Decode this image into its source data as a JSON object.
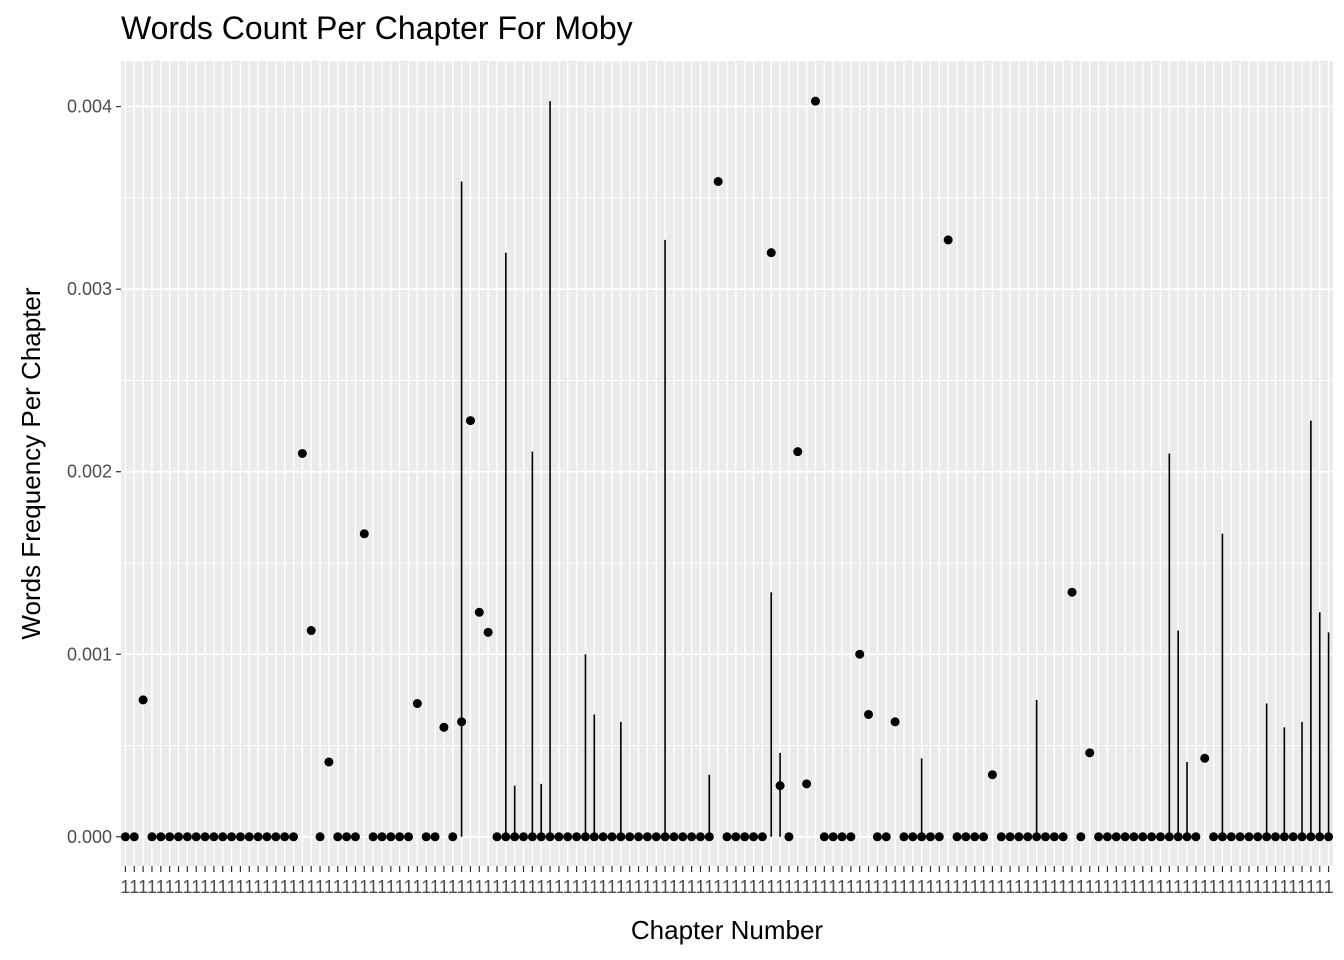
{
  "chart_data": {
    "type": "scatter",
    "title": "Words Count Per Chapter For Moby",
    "xlabel": "Chapter Number",
    "ylabel": "Words Frequency Per Chapter",
    "ylim": [
      -0.00016,
      0.00425
    ],
    "yticks": [
      0,
      0.001,
      0.002,
      0.003,
      0.004
    ],
    "ytick_labels": [
      "0.000",
      "0.001",
      "0.002",
      "0.003",
      "0.004"
    ],
    "grid": true,
    "panel_background": "#ebebeb",
    "grid_color": "#ffffff",
    "point_color": "#000000",
    "line_color": "#000000",
    "n_categories": 137,
    "x_tick_labels_note": "137 overlapping chapter-number tick labels, illegible",
    "points": [
      0,
      0,
      0.00075,
      0,
      0,
      0,
      0,
      0,
      0,
      0,
      0,
      0,
      0,
      0,
      0,
      0,
      0,
      0,
      0,
      0,
      0.0021,
      0.00113,
      0,
      0.00041,
      0,
      0,
      0,
      0.00166,
      0,
      0,
      0,
      0,
      0,
      0.00073,
      0,
      0,
      0.0006,
      0,
      0.00063,
      0.00228,
      0.00123,
      0.00112,
      0,
      0,
      0,
      0,
      0,
      0,
      0,
      0,
      0,
      0,
      0,
      0,
      0,
      0,
      0,
      0,
      0,
      0,
      0,
      0,
      0,
      0,
      0,
      0,
      0,
      0,
      0,
      0,
      0,
      0,
      0,
      0,
      0,
      0,
      0,
      0,
      0,
      0,
      0,
      0,
      0,
      0,
      0,
      0,
      0,
      0,
      0,
      0,
      0,
      0,
      0,
      0,
      0,
      0,
      0,
      0,
      0,
      0,
      0,
      0,
      0,
      0,
      0,
      0,
      0,
      0,
      0,
      0,
      0,
      0,
      0,
      0,
      0,
      0,
      0,
      0,
      0,
      0,
      0,
      0,
      0,
      0,
      0,
      0,
      0,
      0,
      0,
      0,
      0,
      0,
      0,
      0,
      0,
      0,
      0
    ],
    "point_overrides": [
      {
        "i": 67,
        "v": 0.00359
      },
      {
        "i": 73,
        "v": 0.0032
      },
      {
        "i": 74,
        "v": 0.00028
      },
      {
        "i": 76,
        "v": 0.00211
      },
      {
        "i": 77,
        "v": 0.00029
      },
      {
        "i": 78,
        "v": 0.00403
      },
      {
        "i": 83,
        "v": 0.001
      },
      {
        "i": 84,
        "v": 0.00067
      },
      {
        "i": 87,
        "v": 0.00063
      },
      {
        "i": 93,
        "v": 0.00327
      },
      {
        "i": 98,
        "v": 0.00034
      },
      {
        "i": 107,
        "v": 0.00134
      },
      {
        "i": 109,
        "v": 0.00046
      },
      {
        "i": 122,
        "v": 0.00043
      }
    ],
    "segments": [
      {
        "i": 38,
        "v": 0.00359
      },
      {
        "i": 43,
        "v": 0.0032
      },
      {
        "i": 44,
        "v": 0.00028
      },
      {
        "i": 46,
        "v": 0.00211
      },
      {
        "i": 47,
        "v": 0.00029
      },
      {
        "i": 48,
        "v": 0.00403
      },
      {
        "i": 52,
        "v": 0.001
      },
      {
        "i": 53,
        "v": 0.00067
      },
      {
        "i": 56,
        "v": 0.00063
      },
      {
        "i": 61,
        "v": 0.00327
      },
      {
        "i": 66,
        "v": 0.00034
      },
      {
        "i": 73,
        "v": 0.00134
      },
      {
        "i": 74,
        "v": 0.00046
      },
      {
        "i": 90,
        "v": 0.00043
      },
      {
        "i": 103,
        "v": 0.00075
      },
      {
        "i": 118,
        "v": 0.0021
      },
      {
        "i": 119,
        "v": 0.00113
      },
      {
        "i": 120,
        "v": 0.00041
      },
      {
        "i": 124,
        "v": 0.00166
      },
      {
        "i": 129,
        "v": 0.00073
      },
      {
        "i": 131,
        "v": 0.0006
      },
      {
        "i": 133,
        "v": 0.00063
      },
      {
        "i": 134,
        "v": 0.00228
      },
      {
        "i": 135,
        "v": 0.00123
      },
      {
        "i": 136,
        "v": 0.00112
      }
    ]
  }
}
